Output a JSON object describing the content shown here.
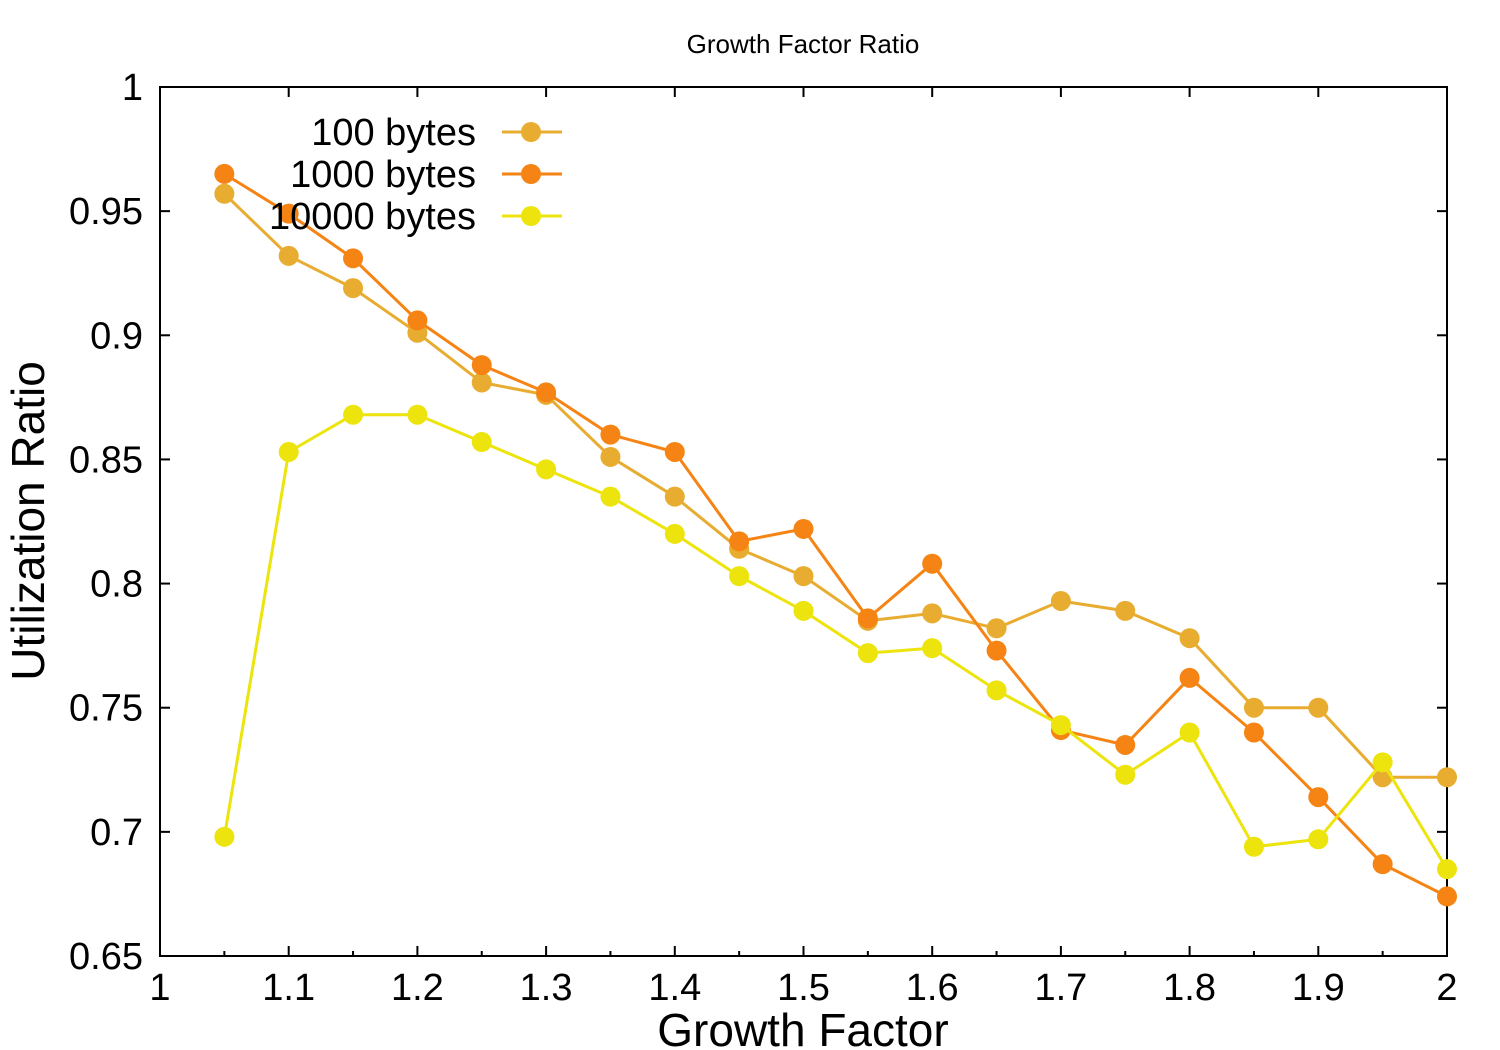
{
  "chart_data": {
    "type": "line",
    "title": "Growth Factor Ratio",
    "xlabel": "Growth Factor",
    "ylabel": "Utilization Ratio",
    "xlim": [
      1,
      2
    ],
    "ylim": [
      0.65,
      1
    ],
    "xticks": [
      "1",
      "1.1",
      "1.2",
      "1.3",
      "1.4",
      "1.5",
      "1.6",
      "1.7",
      "1.8",
      "1.9",
      "2"
    ],
    "yticks": [
      "0.65",
      "0.7",
      "0.75",
      "0.8",
      "0.85",
      "0.9",
      "0.95",
      "1"
    ],
    "grid": false,
    "legend_position": "top-left",
    "x": [
      1.05,
      1.1,
      1.15,
      1.2,
      1.25,
      1.3,
      1.35,
      1.4,
      1.45,
      1.5,
      1.55,
      1.6,
      1.65,
      1.7,
      1.75,
      1.8,
      1.85,
      1.9,
      1.95,
      2.0
    ],
    "series": [
      {
        "name": "100 bytes",
        "color": "#e8ac30",
        "values": [
          0.957,
          0.932,
          0.919,
          0.901,
          0.881,
          0.876,
          0.851,
          0.835,
          0.814,
          0.803,
          0.785,
          0.788,
          0.782,
          0.793,
          0.789,
          0.778,
          0.75,
          0.75,
          0.722,
          0.722
        ]
      },
      {
        "name": "1000 bytes",
        "color": "#f58414",
        "values": [
          0.965,
          0.949,
          0.931,
          0.906,
          0.888,
          0.877,
          0.86,
          0.853,
          0.817,
          0.822,
          0.786,
          0.808,
          0.773,
          0.741,
          0.735,
          0.762,
          0.74,
          0.714,
          0.687,
          0.674
        ]
      },
      {
        "name": "10000 bytes",
        "color": "#ece40c",
        "values": [
          0.698,
          0.853,
          0.868,
          0.868,
          0.857,
          0.846,
          0.835,
          0.82,
          0.803,
          0.789,
          0.772,
          0.774,
          0.757,
          0.743,
          0.723,
          0.74,
          0.694,
          0.697,
          0.728,
          0.685
        ]
      }
    ]
  }
}
